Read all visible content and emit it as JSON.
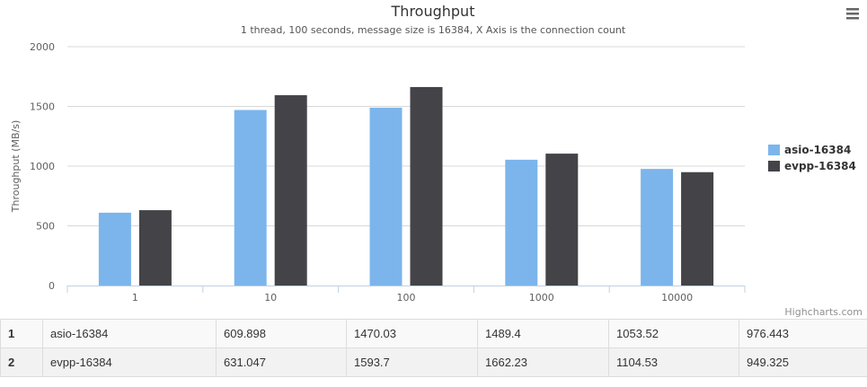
{
  "chart_data": {
    "type": "bar",
    "title": "Throughput",
    "subtitle": "1 thread, 100 seconds, message size is 16384, X Axis is the connection count",
    "xlabel": "",
    "ylabel": "Throughput (MB/s)",
    "categories": [
      "1",
      "10",
      "100",
      "1000",
      "10000"
    ],
    "series": [
      {
        "name": "asio-16384",
        "color": "#7cb5ec",
        "values": [
          609.898,
          1470.03,
          1489.4,
          1053.52,
          976.443
        ]
      },
      {
        "name": "evpp-16384",
        "color": "#434348",
        "values": [
          631.047,
          1593.7,
          1662.23,
          1104.53,
          949.325
        ]
      }
    ],
    "ylim": [
      0,
      2000
    ],
    "yticks": [
      0,
      500,
      1000,
      1500,
      2000
    ],
    "grid": true,
    "legend_position": "right",
    "credits": "Highcharts.com"
  },
  "table": {
    "rows": [
      {
        "index": "1",
        "name": "asio-16384",
        "values": [
          "609.898",
          "1470.03",
          "1489.4",
          "1053.52",
          "976.443"
        ]
      },
      {
        "index": "2",
        "name": "evpp-16384",
        "values": [
          "631.047",
          "1593.7",
          "1662.23",
          "1104.53",
          "949.325"
        ]
      }
    ]
  },
  "menu_icon": "hamburger-menu-icon"
}
